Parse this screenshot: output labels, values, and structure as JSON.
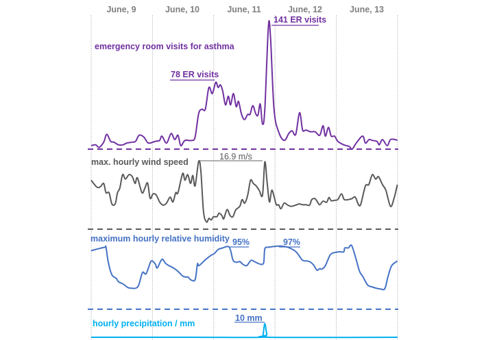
{
  "chart_data": {
    "type": "line",
    "x_unit": "hours from start of June 9",
    "xlim": [
      0,
      120
    ],
    "categories": [
      "June, 9",
      "June, 10",
      "June, 11",
      "June, 12",
      "June, 13"
    ],
    "grid": "vertical dotted lines at day boundaries",
    "panels": [
      {
        "name": "er_visits",
        "label": "emergency room visits for asthma",
        "color": "#7030a0",
        "ylim": [
          0,
          141
        ],
        "annotations": [
          {
            "text": "78 ER visits",
            "value": 78
          },
          {
            "text": "141 ER visits",
            "value": 141
          }
        ],
        "points": [
          [
            0,
            4
          ],
          [
            1.8,
            5
          ],
          [
            3.1,
            2
          ],
          [
            4.9,
            8
          ],
          [
            6.1,
            17
          ],
          [
            7.6,
            9
          ],
          [
            8.9,
            8
          ],
          [
            10.7,
            5
          ],
          [
            12.5,
            5
          ],
          [
            13.9,
            7
          ],
          [
            16.1,
            8
          ],
          [
            17.4,
            9
          ],
          [
            18.8,
            16
          ],
          [
            20.6,
            14
          ],
          [
            22.4,
            7
          ],
          [
            25.1,
            9
          ],
          [
            26.8,
            10
          ],
          [
            27.7,
            15
          ],
          [
            29.5,
            7
          ],
          [
            31.3,
            18
          ],
          [
            32.7,
            11
          ],
          [
            34,
            16
          ],
          [
            35.1,
            4
          ],
          [
            36.7,
            10
          ],
          [
            39.4,
            10
          ],
          [
            40.7,
            14
          ],
          [
            42.1,
            41
          ],
          [
            43.4,
            46
          ],
          [
            44.7,
            46
          ],
          [
            46.1,
            71
          ],
          [
            47.4,
            64
          ],
          [
            48.8,
            77
          ],
          [
            49.7,
            71
          ],
          [
            50.6,
            74
          ],
          [
            51.5,
            67
          ],
          [
            52.6,
            51
          ],
          [
            53.7,
            61
          ],
          [
            54.6,
            51
          ],
          [
            55.7,
            64
          ],
          [
            56.8,
            49
          ],
          [
            57.7,
            55
          ],
          [
            58.8,
            41
          ],
          [
            60,
            34
          ],
          [
            61.3,
            40
          ],
          [
            62.2,
            40
          ],
          [
            63.3,
            50
          ],
          [
            64.4,
            41
          ],
          [
            65.3,
            39
          ],
          [
            66.2,
            52
          ],
          [
            67.1,
            29
          ],
          [
            68,
            46
          ],
          [
            69.4,
            141
          ],
          [
            70.2,
            130
          ],
          [
            71.6,
            46
          ],
          [
            73.4,
            20
          ],
          [
            75.6,
            10
          ],
          [
            77.4,
            18
          ],
          [
            78.7,
            21
          ],
          [
            80.1,
            17
          ],
          [
            81.6,
            42
          ],
          [
            82.8,
            22
          ],
          [
            84.1,
            22
          ],
          [
            85.9,
            20
          ],
          [
            87.7,
            20
          ],
          [
            89.5,
            16
          ],
          [
            90.8,
            27
          ],
          [
            91.7,
            15
          ],
          [
            92.9,
            25
          ],
          [
            94,
            15
          ],
          [
            95.3,
            15
          ],
          [
            96.6,
            9
          ],
          [
            98.9,
            5
          ],
          [
            101.1,
            3
          ],
          [
            102.2,
            0
          ],
          [
            103.8,
            7
          ],
          [
            106.3,
            15
          ],
          [
            107.4,
            7
          ],
          [
            108.8,
            11
          ],
          [
            110.1,
            10
          ],
          [
            111.9,
            9
          ],
          [
            112.8,
            5
          ],
          [
            114.1,
            11
          ],
          [
            115.9,
            4
          ],
          [
            117.2,
            11
          ],
          [
            119,
            11
          ],
          [
            119.9,
            10
          ]
        ]
      },
      {
        "name": "wind_speed",
        "label": "max. hourly wind speed",
        "color": "#595959",
        "ylim": [
          0,
          16.9
        ],
        "annotations": [
          {
            "text": "16.9 m/s",
            "value": 16.9
          }
        ],
        "points": [
          [
            0,
            12.2
          ],
          [
            2.2,
            10.5
          ],
          [
            3.6,
            10.6
          ],
          [
            4.9,
            11.4
          ],
          [
            5.8,
            9.1
          ],
          [
            7,
            9.1
          ],
          [
            8.1,
            6.3
          ],
          [
            9.4,
            6.3
          ],
          [
            10.3,
            9.1
          ],
          [
            11.2,
            10.2
          ],
          [
            12.3,
            13.6
          ],
          [
            13.4,
            12.5
          ],
          [
            14.8,
            13.6
          ],
          [
            16.1,
            13.1
          ],
          [
            17.2,
            11.4
          ],
          [
            18.1,
            12.8
          ],
          [
            19.9,
            9.1
          ],
          [
            21,
            10.2
          ],
          [
            22.1,
            11.5
          ],
          [
            23.1,
            7.7
          ],
          [
            24.2,
            8.8
          ],
          [
            25.5,
            8.5
          ],
          [
            26.8,
            6.8
          ],
          [
            28.2,
            6
          ],
          [
            29.5,
            6.5
          ],
          [
            30.9,
            8
          ],
          [
            32,
            6.8
          ],
          [
            33.1,
            9.1
          ],
          [
            34,
            9.1
          ],
          [
            35.8,
            13.9
          ],
          [
            36.7,
            12.2
          ],
          [
            37.8,
            13.6
          ],
          [
            38.9,
            11.4
          ],
          [
            39.8,
            13.4
          ],
          [
            40.7,
            10.8
          ],
          [
            42.1,
            16.9
          ],
          [
            42.95,
            14.5
          ],
          [
            44,
            4.3
          ],
          [
            45.2,
            1.8
          ],
          [
            46.1,
            2.7
          ],
          [
            47,
            2.3
          ],
          [
            47.9,
            3.1
          ],
          [
            49.2,
            3.1
          ],
          [
            50.1,
            4
          ],
          [
            51.2,
            3.4
          ],
          [
            51.9,
            2.6
          ],
          [
            53.2,
            4.9
          ],
          [
            54.4,
            3.4
          ],
          [
            55.5,
            3.1
          ],
          [
            56.6,
            4.8
          ],
          [
            58.2,
            5.7
          ],
          [
            59.1,
            7.4
          ],
          [
            60.1,
            6.5
          ],
          [
            61.3,
            8.5
          ],
          [
            62.4,
            12.2
          ],
          [
            63.5,
            11.4
          ],
          [
            64.6,
            10.8
          ],
          [
            65.8,
            9.7
          ],
          [
            67.1,
            8.5
          ],
          [
            68,
            16.8
          ],
          [
            68.9,
            11.6
          ],
          [
            69.8,
            6.8
          ],
          [
            70.7,
            9.7
          ],
          [
            71.6,
            8.2
          ],
          [
            72.5,
            6.1
          ],
          [
            73.4,
            6.1
          ],
          [
            74.3,
            5.1
          ],
          [
            75.6,
            6.5
          ],
          [
            77,
            6
          ],
          [
            78.3,
            5.7
          ],
          [
            80.1,
            6
          ],
          [
            81.4,
            6.3
          ],
          [
            82.8,
            6.1
          ],
          [
            84.1,
            6.1
          ],
          [
            85.5,
            6
          ],
          [
            86.4,
            7.4
          ],
          [
            87.7,
            7.6
          ],
          [
            88.6,
            6.8
          ],
          [
            89.5,
            6.1
          ],
          [
            90.8,
            7
          ],
          [
            92.2,
            6.7
          ],
          [
            93.1,
            7.9
          ],
          [
            94,
            7.1
          ],
          [
            95.3,
            7.2
          ],
          [
            96.6,
            7.4
          ],
          [
            98,
            8.8
          ],
          [
            99.1,
            7.4
          ],
          [
            100.7,
            7.4
          ],
          [
            102,
            7.6
          ],
          [
            103.4,
            8
          ],
          [
            104.7,
            6.1
          ],
          [
            105.6,
            6.3
          ],
          [
            107.4,
            10.8
          ],
          [
            108.7,
            11.1
          ],
          [
            110.1,
            13.6
          ],
          [
            111.4,
            12.5
          ],
          [
            112.5,
            13.1
          ],
          [
            114.1,
            11.1
          ],
          [
            115.4,
            9.7
          ],
          [
            117.2,
            5.7
          ],
          [
            118.6,
            7.7
          ],
          [
            119.9,
            11.1
          ]
        ]
      },
      {
        "name": "relative_humidity",
        "label": "maximum hourly relative humidity",
        "color": "#4472c4",
        "ylim": [
          18,
          97
        ],
        "annotations": [
          {
            "text": "95%",
            "value": 95
          },
          {
            "text": "97%",
            "value": 97
          }
        ],
        "points": [
          [
            0,
            90.7
          ],
          [
            2.7,
            93
          ],
          [
            5.4,
            95
          ],
          [
            5.8,
            95
          ],
          [
            6.7,
            76.4
          ],
          [
            8.1,
            60.7
          ],
          [
            9.8,
            56.4
          ],
          [
            10.7,
            52.1
          ],
          [
            12.5,
            49.3
          ],
          [
            14.3,
            45
          ],
          [
            15.7,
            44.1
          ],
          [
            17.4,
            44.1
          ],
          [
            18.6,
            47.9
          ],
          [
            20.1,
            63.6
          ],
          [
            21.5,
            62.1
          ],
          [
            23.3,
            77
          ],
          [
            24.3,
            77
          ],
          [
            25.2,
            73.6
          ],
          [
            25.9,
            69.3
          ],
          [
            27.7,
            79.9
          ],
          [
            29.1,
            75
          ],
          [
            30.4,
            72.1
          ],
          [
            32.2,
            69.3
          ],
          [
            34,
            65
          ],
          [
            35.8,
            59.3
          ],
          [
            37.1,
            57.9
          ],
          [
            38,
            57.9
          ],
          [
            38.9,
            54.7
          ],
          [
            40.7,
            54.7
          ],
          [
            41.6,
            74.1
          ],
          [
            42.2,
            72.1
          ],
          [
            44.7,
            79.3
          ],
          [
            46.98,
            85
          ],
          [
            48.3,
            87.3
          ],
          [
            49.7,
            92.1
          ],
          [
            51.5,
            94.1
          ],
          [
            54.1,
            95
          ],
          [
            55.5,
            79.3
          ],
          [
            56.8,
            76.4
          ],
          [
            58.2,
            77
          ],
          [
            59.5,
            73.6
          ],
          [
            60.9,
            72.1
          ],
          [
            62.6,
            78.7
          ],
          [
            64,
            77
          ],
          [
            65.3,
            75
          ],
          [
            66.7,
            73.6
          ],
          [
            67.6,
            76.4
          ],
          [
            68,
            93
          ],
          [
            69.4,
            95
          ],
          [
            71.6,
            95.9
          ],
          [
            74.3,
            96.4
          ],
          [
            77,
            95
          ],
          [
            79.7,
            90.7
          ],
          [
            81,
            86.4
          ],
          [
            82.8,
            78.7
          ],
          [
            84.6,
            77.9
          ],
          [
            85.9,
            76.4
          ],
          [
            87.3,
            72.1
          ],
          [
            88.4,
            66.4
          ],
          [
            89.5,
            68.4
          ],
          [
            90.4,
            67.9
          ],
          [
            91.7,
            72.1
          ],
          [
            93.5,
            85
          ],
          [
            94.8,
            87.9
          ],
          [
            97.1,
            89.3
          ],
          [
            98.9,
            89.3
          ],
          [
            99.3,
            94.1
          ],
          [
            100.7,
            94.1
          ],
          [
            102,
            97
          ],
          [
            103.8,
            79.3
          ],
          [
            105.1,
            65
          ],
          [
            106.5,
            57.9
          ],
          [
            108.3,
            47.9
          ],
          [
            110.1,
            45.6
          ],
          [
            112.3,
            43.6
          ],
          [
            113.6,
            43
          ],
          [
            115,
            43.6
          ],
          [
            116.3,
            59.3
          ],
          [
            117.7,
            72.1
          ],
          [
            119.9,
            77.9
          ]
        ]
      },
      {
        "name": "precipitation",
        "label": "hourly precipitation / mm",
        "color": "#00b0f0",
        "ylim": [
          0,
          10
        ],
        "annotations": [
          {
            "text": "10 mm",
            "value": 10
          }
        ],
        "points": [
          [
            0,
            0
          ],
          [
            40,
            0
          ],
          [
            66.5,
            0
          ],
          [
            67.3,
            2
          ],
          [
            68,
            10
          ],
          [
            68.8,
            2
          ],
          [
            69.6,
            0
          ],
          [
            120,
            0
          ]
        ]
      }
    ]
  }
}
